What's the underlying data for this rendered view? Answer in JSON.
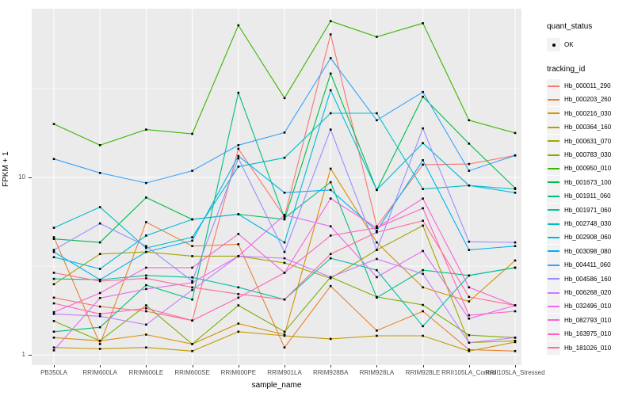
{
  "figure": {
    "y_axis": {
      "label": "FPKM + 1",
      "scale": "log10"
    },
    "x_axis": {
      "label": "sample_name"
    },
    "legend": {
      "quant_status": {
        "title": "quant_status",
        "items": [
          {
            "label": "OK",
            "marker": "black-point"
          }
        ]
      },
      "tracking_id": {
        "title": "tracking_id"
      }
    },
    "colors": {
      "panel_bg": "#EBEBEB",
      "grid": "#FFFFFF",
      "point": "#000000",
      "tick_text": "#4D4D4D"
    }
  },
  "chart_data": {
    "type": "line",
    "xlabel": "sample_name",
    "ylabel": "FPKM + 1",
    "y_scale": "log10",
    "y_ticks": [
      10,
      1
    ],
    "ylim_approx": [
      0.87,
      90
    ],
    "grid": "white major at 1,10 and minor at 3.16,31.6 on grey panel",
    "legend_position": "right",
    "x_categories": [
      "PB350LA",
      "RRIM600LA",
      "RRIM600LE",
      "RRIM600SE",
      "RRIM600PE",
      "RRIM901LA",
      "RRIM928BA",
      "RRIM928LA",
      "RRIM928LE",
      "RRII105LA_Control",
      "RRII105LA_Stressed"
    ],
    "series": [
      {
        "name": "Hb_000011_290",
        "color": "#F8766D",
        "values": [
          2.1,
          1.87,
          1.76,
          1.56,
          14.5,
          6.0,
          64,
          5.3,
          11.8,
          11.9,
          13.3
        ]
      },
      {
        "name": "Hb_000203_260",
        "color": "#EA8331",
        "values": [
          4.6,
          1.15,
          5.6,
          4.1,
          4.2,
          1.1,
          2.44,
          1.37,
          1.76,
          1.07,
          1.05
        ]
      },
      {
        "name": "Hb_000216_030",
        "color": "#D89000",
        "values": [
          1.25,
          1.2,
          1.3,
          1.15,
          1.5,
          1.3,
          11.2,
          4.3,
          2.4,
          2.0,
          3.4
        ]
      },
      {
        "name": "Hb_000364_160",
        "color": "#C09B00",
        "values": [
          1.1,
          1.08,
          1.1,
          1.05,
          1.35,
          1.28,
          1.23,
          1.28,
          1.28,
          1.05,
          1.18
        ]
      },
      {
        "name": "Hb_000631_070",
        "color": "#A3A500",
        "values": [
          2.5,
          3.7,
          3.8,
          3.6,
          3.6,
          3.3,
          2.7,
          3.9,
          5.35,
          1.17,
          1.2
        ]
      },
      {
        "name": "Hb_000783_030",
        "color": "#7CAE00",
        "values": [
          1.55,
          1.2,
          1.9,
          1.15,
          1.9,
          1.35,
          2.74,
          2.12,
          1.91,
          1.29,
          1.25
        ]
      },
      {
        "name": "Hb_000950_010",
        "color": "#39B600",
        "values": [
          20,
          15.2,
          18.6,
          17.6,
          72,
          28,
          76,
          62,
          74,
          21,
          17.8
        ]
      },
      {
        "name": "Hb_001673_100",
        "color": "#00BB4E",
        "values": [
          4.5,
          4.3,
          7.7,
          5.8,
          6.2,
          5.8,
          38.5,
          8.5,
          28.5,
          15.5,
          8.7
        ]
      },
      {
        "name": "Hb_001911_060",
        "color": "#00BF7D",
        "values": [
          1.35,
          1.43,
          2.47,
          2.05,
          30,
          5.9,
          9.4,
          2.1,
          3.0,
          2.8,
          3.1
        ]
      },
      {
        "name": "Hb_001971_060",
        "color": "#00C1A3",
        "values": [
          2.68,
          2.65,
          2.8,
          2.73,
          2.4,
          2.05,
          3.5,
          3.0,
          1.45,
          2.8,
          3.1
        ]
      },
      {
        "name": "Hb_002748_030",
        "color": "#00BFC4",
        "values": [
          5.2,
          6.8,
          4.0,
          4.6,
          11.5,
          12.9,
          23,
          23,
          8.6,
          9.0,
          8.6
        ]
      },
      {
        "name": "Hb_002908_060",
        "color": "#00BADE",
        "values": [
          3.55,
          3.05,
          4.7,
          5.8,
          6.2,
          4.3,
          31,
          8.5,
          15.6,
          9.0,
          8.2
        ]
      },
      {
        "name": "Hb_003098_080",
        "color": "#00B0F6",
        "values": [
          3.8,
          2.65,
          3.8,
          4.4,
          13.2,
          8.2,
          8.5,
          5.0,
          12.5,
          3.9,
          4.1
        ]
      },
      {
        "name": "Hb_004411_060",
        "color": "#35A2FF",
        "values": [
          12.7,
          10.6,
          9.3,
          10.9,
          15.2,
          17.9,
          47,
          21,
          30.3,
          10.9,
          13.3
        ]
      },
      {
        "name": "Hb_004586_160",
        "color": "#9590FF",
        "values": [
          3.9,
          5.5,
          4.1,
          2.6,
          12.8,
          3.8,
          18.6,
          3.9,
          18.9,
          4.34,
          4.3
        ]
      },
      {
        "name": "Hb_006268_020",
        "color": "#C77CFF",
        "values": [
          1.7,
          1.65,
          1.48,
          2.32,
          3.6,
          3.5,
          2.74,
          3.47,
          2.86,
          1.17,
          1.25
        ]
      },
      {
        "name": "Hb_032496_010",
        "color": "#E76BF3",
        "values": [
          1.06,
          2.09,
          2.35,
          2.55,
          3.6,
          6.15,
          5.3,
          2.74,
          3.85,
          1.6,
          1.9
        ]
      },
      {
        "name": "Hb_082793_010",
        "color": "#FA62DB",
        "values": [
          1.74,
          2.23,
          3.1,
          3.1,
          4.8,
          2.9,
          7.6,
          5.2,
          7.6,
          2.4,
          1.9
        ]
      },
      {
        "name": "Hb_163975_010",
        "color": "#FF62BC",
        "values": [
          1.95,
          1.7,
          1.83,
          1.56,
          2.1,
          2.9,
          4.7,
          5.2,
          6.7,
          1.67,
          1.76
        ]
      },
      {
        "name": "Hb_181026_010",
        "color": "#FF6A98",
        "values": [
          2.9,
          2.6,
          2.7,
          2.4,
          2.2,
          2.05,
          3.7,
          4.9,
          5.7,
          2.12,
          1.9
        ]
      }
    ]
  }
}
